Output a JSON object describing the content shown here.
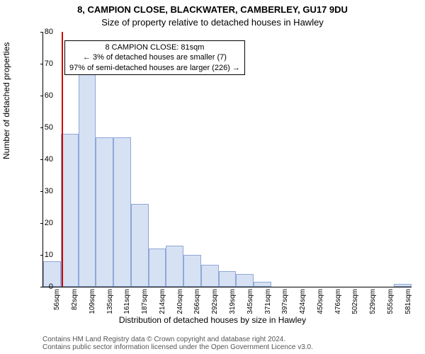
{
  "title_line1": "8, CAMPION CLOSE, BLACKWATER, CAMBERLEY, GU17 9DU",
  "title_line2": "Size of property relative to detached houses in Hawley",
  "ylabel": "Number of detached properties",
  "xlabel": "Distribution of detached houses by size in Hawley",
  "footnote_line1": "Contains HM Land Registry data © Crown copyright and database right 2024.",
  "footnote_line2": "Contains public sector information licensed under the Open Government Licence v3.0.",
  "chart": {
    "type": "histogram",
    "background_color": "#ffffff",
    "bar_fill": "#d6e1f4",
    "bar_border": "#8fa8d6",
    "marker_color": "#d00000",
    "ylim": [
      0,
      80
    ],
    "ytick_step": 10,
    "x_tick_labels": [
      "56sqm",
      "82sqm",
      "109sqm",
      "135sqm",
      "161sqm",
      "187sqm",
      "214sqm",
      "240sqm",
      "266sqm",
      "292sqm",
      "319sqm",
      "345sqm",
      "371sqm",
      "397sqm",
      "424sqm",
      "450sqm",
      "476sqm",
      "502sqm",
      "529sqm",
      "555sqm",
      "581sqm"
    ],
    "bar_values": [
      8,
      48,
      67,
      47,
      47,
      26,
      12,
      13,
      10,
      7,
      5,
      4,
      1.5,
      0,
      0,
      0,
      0,
      0,
      0,
      0,
      0.8
    ],
    "marker_bin_index": 1,
    "marker_fraction_in_bin": 0.05
  },
  "annotation": {
    "line1": "8 CAMPION CLOSE: 81sqm",
    "line2": "← 3% of detached houses are smaller (7)",
    "line3": "97% of semi-detached houses are larger (226) →"
  }
}
